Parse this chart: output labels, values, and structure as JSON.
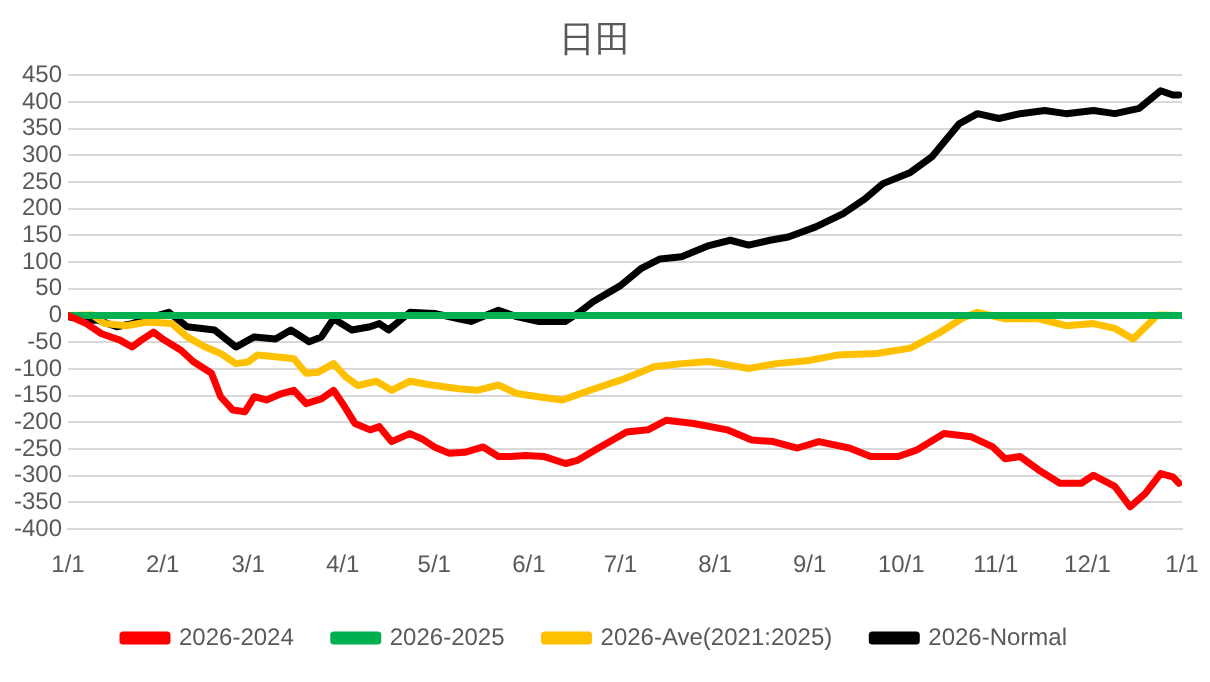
{
  "chart_data": {
    "type": "line",
    "title": "日田",
    "xlim": [
      "2026-01-01",
      "2027-01-01"
    ],
    "xticks": [
      {
        "value": "2026-01-01",
        "label": "1/1"
      },
      {
        "value": "2026-02-01",
        "label": "2/1"
      },
      {
        "value": "2026-03-01",
        "label": "3/1"
      },
      {
        "value": "2026-04-01",
        "label": "4/1"
      },
      {
        "value": "2026-05-01",
        "label": "5/1"
      },
      {
        "value": "2026-06-01",
        "label": "6/1"
      },
      {
        "value": "2026-07-01",
        "label": "7/1"
      },
      {
        "value": "2026-08-01",
        "label": "8/1"
      },
      {
        "value": "2026-09-01",
        "label": "9/1"
      },
      {
        "value": "2026-10-01",
        "label": "10/1"
      },
      {
        "value": "2026-11-01",
        "label": "11/1"
      },
      {
        "value": "2026-12-01",
        "label": "12/1"
      },
      {
        "value": "2027-01-01",
        "label": "1/1"
      }
    ],
    "ylim": [
      -400,
      450
    ],
    "yticks": [
      -400,
      -350,
      -300,
      -250,
      -200,
      -150,
      -100,
      -50,
      0,
      50,
      100,
      150,
      200,
      250,
      300,
      350,
      400,
      450
    ],
    "grid": "y",
    "legend": "bottom",
    "marker": "none",
    "line_style": "solid",
    "series": [
      {
        "name": "2026-2024",
        "color": "#ff0000",
        "x": [
          "2026-01-01",
          "2026-01-07",
          "2026-01-12",
          "2026-01-18",
          "2026-01-22",
          "2026-01-25",
          "2026-01-29",
          "2026-02-01",
          "2026-02-07",
          "2026-02-11",
          "2026-02-17",
          "2026-02-20",
          "2026-02-24",
          "2026-02-28",
          "2026-03-03",
          "2026-03-07",
          "2026-03-12",
          "2026-03-16",
          "2026-03-20",
          "2026-03-25",
          "2026-03-29",
          "2026-04-01",
          "2026-04-05",
          "2026-04-10",
          "2026-04-13",
          "2026-04-17",
          "2026-04-23",
          "2026-04-27",
          "2026-05-01",
          "2026-05-06",
          "2026-05-11",
          "2026-05-17",
          "2026-05-22",
          "2026-05-26",
          "2026-05-31",
          "2026-06-06",
          "2026-06-13",
          "2026-06-17",
          "2026-06-22",
          "2026-07-03",
          "2026-07-10",
          "2026-07-16",
          "2026-07-25",
          "2026-08-05",
          "2026-08-13",
          "2026-08-20",
          "2026-08-28",
          "2026-09-04",
          "2026-09-14",
          "2026-09-21",
          "2026-09-30",
          "2026-10-06",
          "2026-10-15",
          "2026-10-24",
          "2026-10-31",
          "2026-11-04",
          "2026-11-09",
          "2026-11-15",
          "2026-11-22",
          "2026-11-29",
          "2026-12-03",
          "2026-12-10",
          "2026-12-15",
          "2026-12-20",
          "2026-12-25",
          "2026-12-29",
          "2026-12-31"
        ],
        "values": [
          0,
          -15,
          -34,
          -46,
          -59,
          -46,
          -31,
          -44,
          -65,
          -86,
          -108,
          -152,
          -177,
          -180,
          -152,
          -158,
          -146,
          -140,
          -165,
          -156,
          -140,
          -165,
          -202,
          -214,
          -208,
          -236,
          -221,
          -231,
          -246,
          -258,
          -256,
          -246,
          -264,
          -264,
          -262,
          -264,
          -277,
          -271,
          -254,
          -218,
          -214,
          -196,
          -202,
          -214,
          -233,
          -236,
          -248,
          -236,
          -248,
          -264,
          -264,
          -252,
          -221,
          -227,
          -246,
          -268,
          -264,
          -289,
          -314,
          -314,
          -299,
          -320,
          -358,
          -333,
          -296,
          -302,
          -314
        ]
      },
      {
        "name": "2026-2025",
        "color": "#00b050",
        "x": [
          "2026-01-01",
          "2027-01-01"
        ],
        "values": [
          0,
          0
        ]
      },
      {
        "name": "2026-Ave(2021:2025)",
        "color": "#ffc000",
        "x": [
          "2026-01-01",
          "2026-01-09",
          "2026-01-13",
          "2026-01-20",
          "2026-01-27",
          "2026-02-04",
          "2026-02-09",
          "2026-02-15",
          "2026-02-20",
          "2026-02-25",
          "2026-03-01",
          "2026-03-04",
          "2026-03-10",
          "2026-03-16",
          "2026-03-20",
          "2026-03-24",
          "2026-03-29",
          "2026-04-02",
          "2026-04-06",
          "2026-04-12",
          "2026-04-17",
          "2026-04-23",
          "2026-04-30",
          "2026-05-09",
          "2026-05-15",
          "2026-05-22",
          "2026-05-28",
          "2026-06-04",
          "2026-06-12",
          "2026-06-17",
          "2026-06-22",
          "2026-07-01",
          "2026-07-12",
          "2026-07-21",
          "2026-07-30",
          "2026-08-12",
          "2026-08-21",
          "2026-09-01",
          "2026-09-10",
          "2026-09-23",
          "2026-10-04",
          "2026-10-13",
          "2026-10-21",
          "2026-10-26",
          "2026-11-04",
          "2026-11-15",
          "2026-11-24",
          "2026-12-03",
          "2026-12-10",
          "2026-12-16",
          "2026-12-24",
          "2026-12-31"
        ],
        "values": [
          0,
          1,
          -15,
          -19,
          -12,
          -15,
          -40,
          -59,
          -71,
          -90,
          -87,
          -74,
          -77,
          -81,
          -108,
          -106,
          -90,
          -115,
          -131,
          -123,
          -140,
          -123,
          -130,
          -137,
          -140,
          -130,
          -146,
          -152,
          -158,
          -148,
          -138,
          -121,
          -96,
          -90,
          -86,
          -99,
          -90,
          -84,
          -74,
          -71,
          -61,
          -34,
          -5,
          6,
          -6,
          -6,
          -19,
          -15,
          -24,
          -44,
          1,
          0
        ]
      },
      {
        "name": "2026-Normal",
        "color": "#000000",
        "x": [
          "2026-01-01",
          "2026-01-07",
          "2026-01-11",
          "2026-01-17",
          "2026-01-22",
          "2026-01-29",
          "2026-02-03",
          "2026-02-09",
          "2026-02-18",
          "2026-02-25",
          "2026-03-03",
          "2026-03-10",
          "2026-03-15",
          "2026-03-21",
          "2026-03-25",
          "2026-03-29",
          "2026-04-04",
          "2026-04-10",
          "2026-04-13",
          "2026-04-16",
          "2026-04-23",
          "2026-05-01",
          "2026-05-09",
          "2026-05-13",
          "2026-05-22",
          "2026-05-28",
          "2026-06-04",
          "2026-06-13",
          "2026-06-17",
          "2026-06-22",
          "2026-07-01",
          "2026-07-08",
          "2026-07-14",
          "2026-07-21",
          "2026-07-30",
          "2026-08-06",
          "2026-08-12",
          "2026-08-19",
          "2026-08-25",
          "2026-09-03",
          "2026-09-12",
          "2026-09-19",
          "2026-09-25",
          "2026-10-04",
          "2026-10-11",
          "2026-10-20",
          "2026-10-26",
          "2026-11-02",
          "2026-11-09",
          "2026-11-17",
          "2026-11-24",
          "2026-12-03",
          "2026-12-10",
          "2026-12-18",
          "2026-12-25",
          "2026-12-29",
          "2026-12-31"
        ],
        "values": [
          -2,
          -9,
          -9,
          -21,
          -15,
          -2,
          6,
          -21,
          -27,
          -59,
          -40,
          -44,
          -27,
          -49,
          -40,
          -6,
          -27,
          -21,
          -15,
          -27,
          6,
          4,
          -6,
          -11,
          10,
          -2,
          -11,
          -11,
          4,
          26,
          56,
          89,
          106,
          110,
          131,
          141,
          132,
          141,
          147,
          166,
          191,
          218,
          247,
          268,
          297,
          359,
          378,
          369,
          378,
          384,
          378,
          384,
          378,
          388,
          421,
          413,
          413
        ]
      }
    ]
  }
}
